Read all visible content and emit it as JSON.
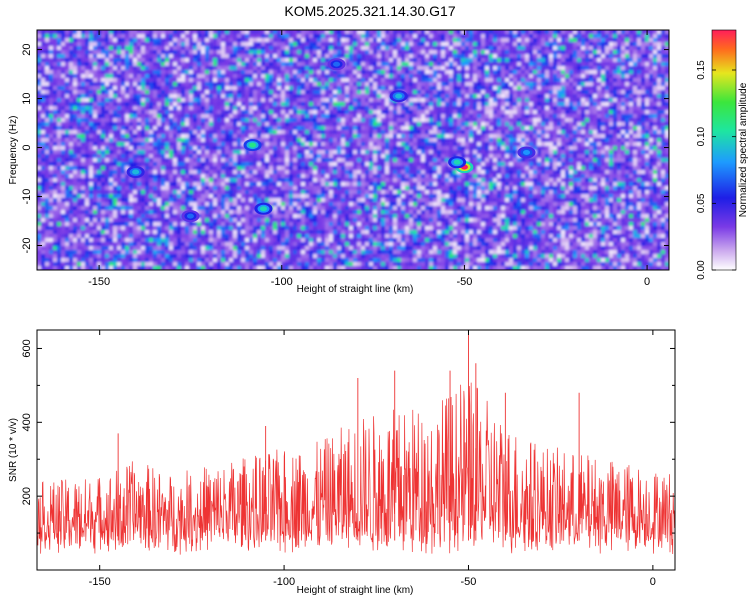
{
  "title": "KOM5.2025.321.14.30.G17",
  "chart_data": [
    {
      "type": "heatmap",
      "title": "KOM5.2025.321.14.30.G17",
      "xlabel": "Height of straight line (km)",
      "ylabel": "Frequency (Hz)",
      "xlim": [
        -167,
        6
      ],
      "ylim": [
        -25,
        24
      ],
      "xticks": [
        -150,
        -100,
        -50,
        0
      ],
      "yticks": [
        -20,
        -10,
        0,
        10,
        20
      ],
      "colorbar": {
        "label": "Normalized spectral amplitude",
        "range": [
          0,
          0.18
        ],
        "ticks": [
          "0.00",
          "0.05",
          "0.10",
          "0.15"
        ],
        "tick_values": [
          0,
          0.05,
          0.1,
          0.15
        ]
      },
      "hotspots": [
        {
          "x": -50,
          "y": -4,
          "value": 0.18
        },
        {
          "x": -52,
          "y": -3,
          "value": 0.1
        },
        {
          "x": -108,
          "y": 0.5,
          "value": 0.11
        },
        {
          "x": -105,
          "y": -12.5,
          "value": 0.1
        },
        {
          "x": -140,
          "y": -5,
          "value": 0.09
        },
        {
          "x": -68,
          "y": 10.5,
          "value": 0.09
        },
        {
          "x": -33,
          "y": -1,
          "value": 0.08
        },
        {
          "x": -125,
          "y": -14,
          "value": 0.07
        },
        {
          "x": -85,
          "y": 17,
          "value": 0.07
        }
      ]
    },
    {
      "type": "line",
      "xlabel": "Height of straight line (km)",
      "ylabel": "SNR (10 * v/v)",
      "xlim": [
        -167,
        6
      ],
      "ylim": [
        0,
        650
      ],
      "xticks": [
        -150,
        -100,
        -50,
        0
      ],
      "yticks": [
        200,
        400,
        600
      ],
      "series": [
        {
          "name": "SNR",
          "color": "#ee3333",
          "peak": {
            "x": -50,
            "y": 650
          },
          "envelope": [
            {
              "x": -165,
              "y": 240
            },
            {
              "x": -150,
              "y": 260
            },
            {
              "x": -140,
              "y": 300
            },
            {
              "x": -130,
              "y": 260
            },
            {
              "x": -120,
              "y": 290
            },
            {
              "x": -110,
              "y": 310
            },
            {
              "x": -100,
              "y": 330
            },
            {
              "x": -90,
              "y": 350
            },
            {
              "x": -80,
              "y": 420
            },
            {
              "x": -70,
              "y": 440
            },
            {
              "x": -60,
              "y": 460
            },
            {
              "x": -50,
              "y": 520
            },
            {
              "x": -40,
              "y": 410
            },
            {
              "x": -30,
              "y": 340
            },
            {
              "x": -20,
              "y": 320
            },
            {
              "x": -10,
              "y": 300
            },
            {
              "x": 0,
              "y": 280
            },
            {
              "x": 5,
              "y": 270
            }
          ],
          "spikes": [
            {
              "x": -145,
              "y": 370
            },
            {
              "x": -105,
              "y": 390
            },
            {
              "x": -80,
              "y": 520
            },
            {
              "x": -70,
              "y": 540
            },
            {
              "x": -55,
              "y": 540
            },
            {
              "x": -50,
              "y": 650
            },
            {
              "x": -48,
              "y": 560
            },
            {
              "x": -40,
              "y": 480
            },
            {
              "x": -20,
              "y": 480
            }
          ]
        }
      ]
    }
  ]
}
